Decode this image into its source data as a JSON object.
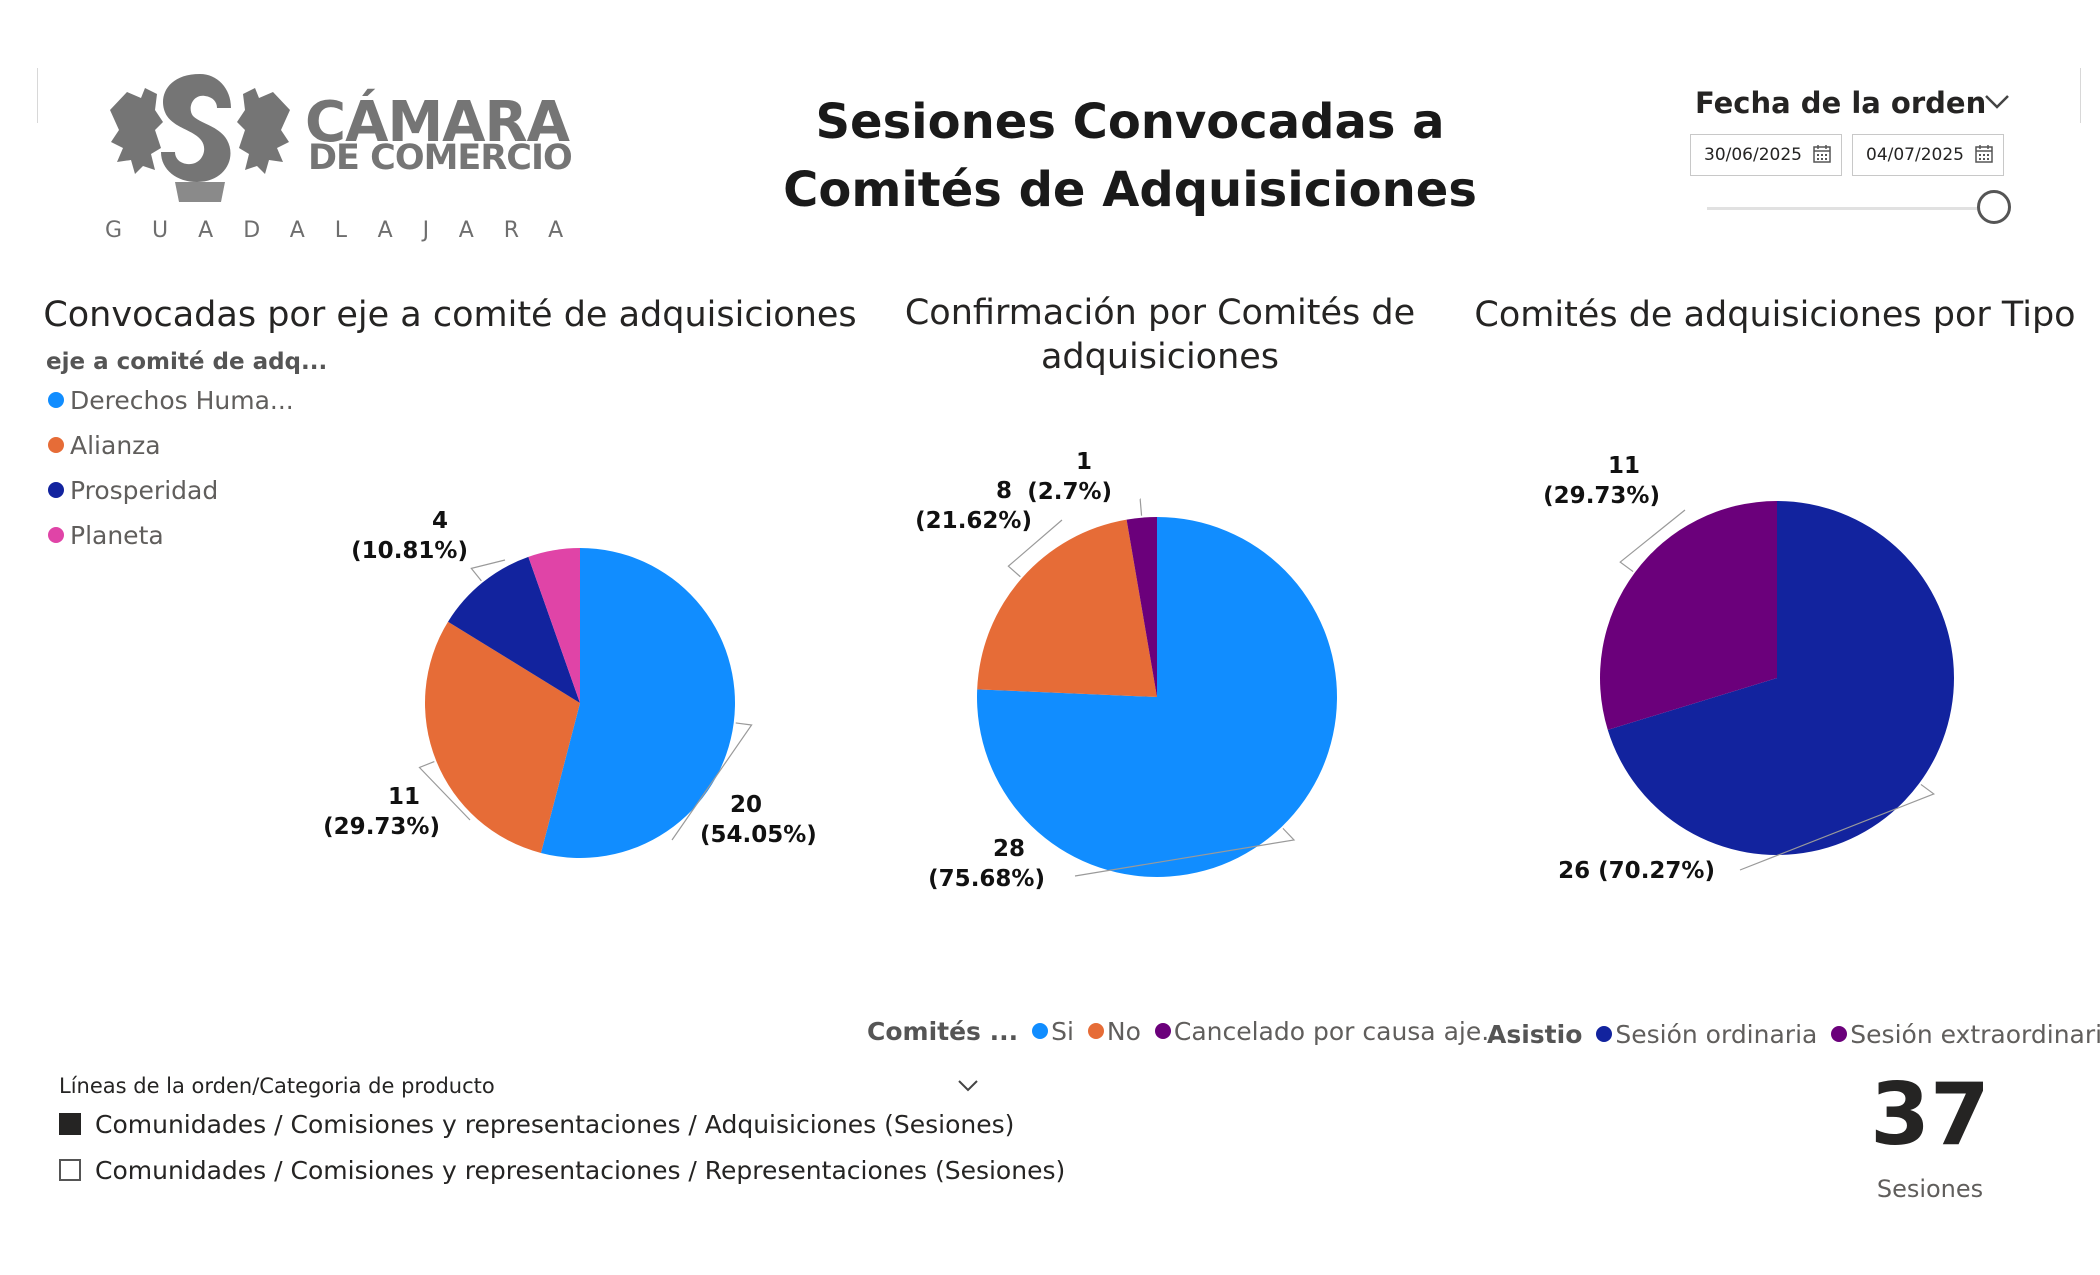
{
  "logo": {
    "word1": "CÁMARA",
    "word2": "DE COMERCIO",
    "city": "GUADALAJARA",
    "brand_color": "#757575"
  },
  "title": "Sesiones Convocadas a Comités de Adquisiciones",
  "date_filter": {
    "title": "Fecha de la orden",
    "start": "30/06/2025",
    "end": "04/07/2025",
    "slider_position": 1.0
  },
  "category_filter": {
    "title": "Líneas de la orden/Categoria de producto",
    "items": [
      {
        "label": "Comunidades / Comisiones y representaciones / Adquisiciones (Sesiones)",
        "checked": true
      },
      {
        "label": "Comunidades / Comisiones y representaciones / Representaciones (Sesiones)",
        "checked": false
      }
    ]
  },
  "kpi": {
    "value": "37",
    "label": "Sesiones"
  },
  "chart_data": [
    {
      "type": "pie",
      "title": "Convocadas por eje a comité de adquisiciones",
      "legend_title": "eje a comité de adq...",
      "legend_position": "left",
      "categories": [
        "Derechos Huma...",
        "Alianza",
        "Prosperidad",
        "Planeta"
      ],
      "values": [
        20,
        11,
        4,
        2
      ],
      "colors": [
        "#118DFF",
        "#E66C37",
        "#12239E",
        "#E044A7"
      ],
      "data_labels": [
        {
          "value": "20",
          "percent": "(54.05%)"
        },
        {
          "value": "11",
          "percent": "(29.73%)"
        },
        {
          "value": "4",
          "percent": "(10.81%)"
        },
        null
      ]
    },
    {
      "type": "pie",
      "title": "Confirmación por Comités de adquisiciones",
      "legend_title": "Comités ...",
      "legend_position": "bottom",
      "categories": [
        "Si",
        "No",
        "Cancelado por causa aje..."
      ],
      "values": [
        28,
        8,
        1
      ],
      "colors": [
        "#118DFF",
        "#E66C37",
        "#6B007B"
      ],
      "data_labels": [
        {
          "value": "28",
          "percent": "(75.68%)"
        },
        {
          "value": "8",
          "percent": "(21.62%)"
        },
        {
          "value": "1",
          "percent": "(2.7%)"
        }
      ]
    },
    {
      "type": "pie",
      "title": "Comités de adquisiciones por Tipo",
      "legend_title": "Asistio",
      "legend_position": "bottom",
      "categories": [
        "Sesión ordinaria",
        "Sesión extraordinaria"
      ],
      "values": [
        26,
        11
      ],
      "colors": [
        "#12239E",
        "#6B007B"
      ],
      "data_labels": [
        {
          "value": "26 (70.27%)",
          "percent": ""
        },
        {
          "value": "11",
          "percent": "(29.73%)"
        }
      ]
    }
  ]
}
